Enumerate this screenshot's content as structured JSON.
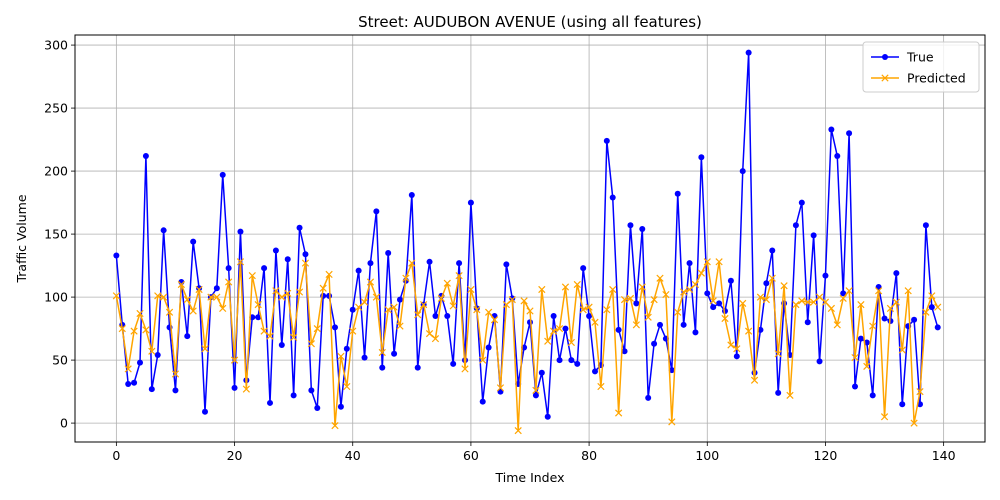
{
  "chart_data": {
    "type": "line",
    "title": "Street: AUDUBON AVENUE (using all features)",
    "xlabel": "Time Index",
    "ylabel": "Traffic Volume",
    "xlim": [
      -7,
      147
    ],
    "ylim": [
      -15,
      308
    ],
    "xticks": [
      0,
      20,
      40,
      60,
      80,
      100,
      120,
      140
    ],
    "yticks": [
      0,
      50,
      100,
      150,
      200,
      250,
      300
    ],
    "grid": true,
    "legend_position": "top-right",
    "series": [
      {
        "name": "True",
        "color": "#0000ff",
        "marker": "o",
        "values": [
          133,
          78,
          31,
          32,
          48,
          212,
          27,
          54,
          153,
          76,
          26,
          112,
          69,
          144,
          107,
          9,
          100,
          107,
          197,
          123,
          28,
          152,
          34,
          84,
          84,
          123,
          16,
          137,
          62,
          130,
          22,
          155,
          134,
          26,
          12,
          101,
          101,
          76,
          13,
          59,
          90,
          121,
          52,
          127,
          168,
          44,
          135,
          55,
          98,
          113,
          181,
          44,
          94,
          128,
          85,
          101,
          85,
          47,
          127,
          50,
          175,
          91,
          17,
          60,
          85,
          25,
          126,
          99,
          31,
          60,
          80,
          22,
          40,
          5,
          85,
          50,
          75,
          50,
          47,
          123,
          85,
          41,
          46,
          224,
          179,
          74,
          57,
          157,
          95,
          154,
          20,
          63,
          78,
          67,
          42,
          182,
          78,
          127,
          72,
          211,
          103,
          92,
          95,
          89,
          113,
          53,
          200,
          294,
          40,
          74,
          111,
          137,
          24,
          95,
          54,
          157,
          175,
          80,
          149,
          49,
          117,
          233,
          212,
          103,
          230,
          29,
          67,
          64,
          22,
          108,
          83,
          81,
          119,
          15,
          77,
          82,
          15,
          157,
          92,
          76
        ]
      },
      {
        "name": "Predicted",
        "color": "#ffa500",
        "marker": "x",
        "values": [
          101,
          75,
          43,
          73,
          87,
          74,
          57,
          101,
          100,
          88,
          39,
          110,
          98,
          89,
          106,
          59,
          100,
          100,
          91,
          112,
          50,
          128,
          27,
          117,
          94,
          73,
          69,
          105,
          100,
          103,
          68,
          104,
          127,
          63,
          75,
          107,
          118,
          -2,
          53,
          29,
          73,
          92,
          96,
          112,
          100,
          56,
          90,
          92,
          77,
          115,
          127,
          86,
          94,
          71,
          67,
          99,
          111,
          93,
          117,
          43,
          106,
          90,
          50,
          88,
          82,
          28,
          94,
          98,
          -6,
          97,
          89,
          26,
          106,
          65,
          73,
          75,
          108,
          64,
          110,
          90,
          92,
          80,
          29,
          90,
          106,
          8,
          98,
          99,
          78,
          108,
          84,
          98,
          115,
          102,
          1,
          88,
          104,
          106,
          110,
          119,
          128,
          97,
          128,
          83,
          62,
          59,
          95,
          73,
          34,
          100,
          98,
          115,
          55,
          109,
          22,
          94,
          97,
          96,
          96,
          100,
          96,
          91,
          78,
          99,
          105,
          52,
          94,
          45,
          77,
          105,
          5,
          91,
          96,
          58,
          105,
          0,
          25,
          88,
          101,
          92
        ]
      }
    ]
  }
}
